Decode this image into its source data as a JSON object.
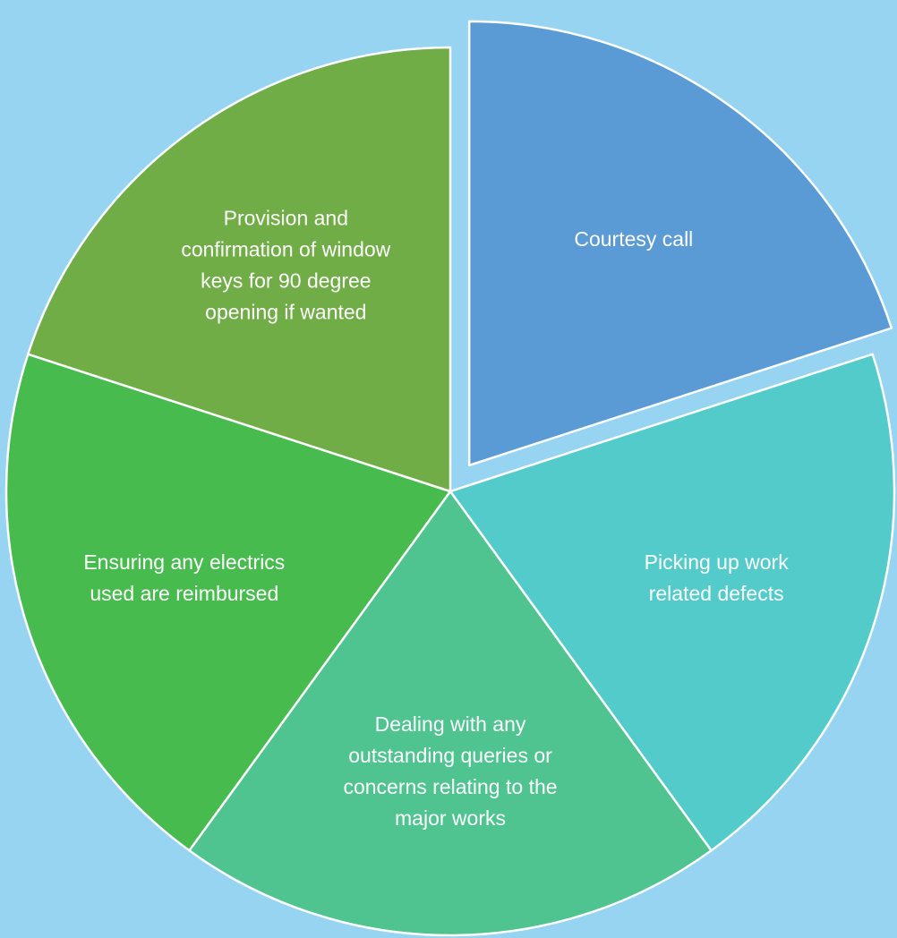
{
  "diagram": {
    "segments": [
      {
        "id": "courtesy-call",
        "lines": [
          "Courtesy call"
        ],
        "color": "#5b9bd5",
        "exploded": true
      },
      {
        "id": "picking-up-defects",
        "lines": [
          "Picking up work",
          "related defects"
        ],
        "color": "#53cbcb",
        "exploded": false
      },
      {
        "id": "dealing-with-queries",
        "lines": [
          "Dealing with any",
          "outstanding queries or",
          "concerns relating to the",
          "major works"
        ],
        "color": "#4fc490",
        "exploded": false
      },
      {
        "id": "ensuring-electrics",
        "lines": [
          "Ensuring any electrics",
          "used are reimbursed"
        ],
        "color": "#48bb4f",
        "exploded": false
      },
      {
        "id": "window-keys",
        "lines": [
          "Provision and",
          "confirmation of window",
          "keys for 90 degree",
          "opening if wanted"
        ],
        "color": "#70ad47",
        "exploded": false
      }
    ]
  }
}
